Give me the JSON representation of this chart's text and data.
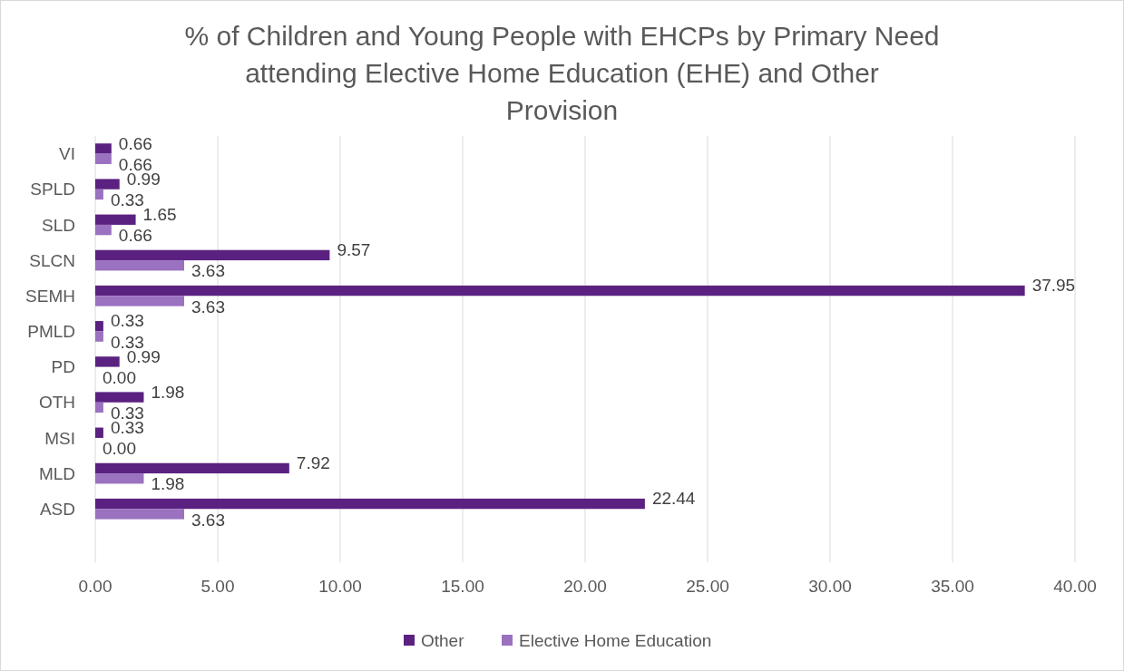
{
  "chart_data": {
    "type": "bar",
    "orientation": "horizontal",
    "title": "% of Children and Young People with EHCPs by Primary Need attending Elective Home Education (EHE) and Other Provision",
    "categories": [
      "VI",
      "SPLD",
      "SLD",
      "SLCN",
      "SEMH",
      "PMLD",
      "PD",
      "OTH",
      "MSI",
      "MLD",
      "ASD",
      null
    ],
    "series": [
      {
        "name": "Other",
        "color": "#5b2180",
        "values": [
          0.66,
          0.99,
          1.65,
          9.57,
          37.95,
          0.33,
          0.99,
          1.98,
          0.33,
          7.92,
          22.44,
          null
        ],
        "value_labels": [
          "0.66",
          "0.99",
          "1.65",
          "9.57",
          "37.95",
          "0.33",
          "0.99",
          "1.98",
          "0.33",
          "7.92",
          "22.44",
          null
        ]
      },
      {
        "name": "Elective Home Education",
        "color": "#9a72c0",
        "values": [
          0.66,
          0.33,
          0.66,
          3.63,
          3.63,
          0.33,
          0,
          0.33,
          0,
          1.98,
          3.63,
          null
        ],
        "value_labels": [
          "0.66",
          "0.33",
          "0.66",
          "3.63",
          "3.63",
          "0.33",
          "0.00",
          "0.33",
          "0.00",
          "1.98",
          "3.63",
          null
        ]
      }
    ],
    "xlim": [
      0,
      40
    ],
    "xticks": [
      {
        "value": 0,
        "label": "0.00"
      },
      {
        "value": 5,
        "label": "5.00"
      },
      {
        "value": 10,
        "label": "10.00"
      },
      {
        "value": 15,
        "label": "15.00"
      },
      {
        "value": 20,
        "label": "20.00"
      },
      {
        "value": 25,
        "label": "25.00"
      },
      {
        "value": 30,
        "label": "30.00"
      },
      {
        "value": 35,
        "label": "35.00"
      },
      {
        "value": 40,
        "label": "40.00"
      }
    ],
    "grid": "x",
    "legend": "bottom"
  }
}
